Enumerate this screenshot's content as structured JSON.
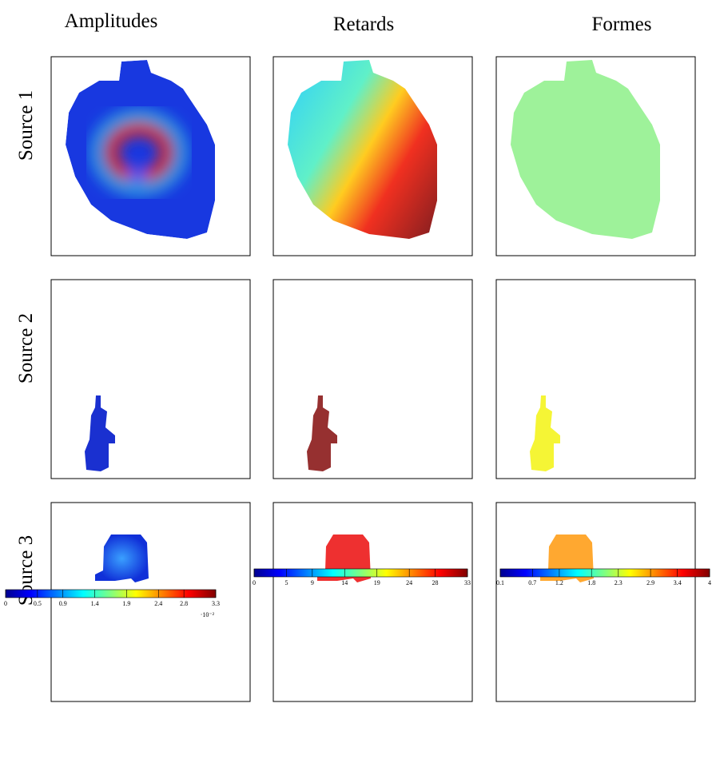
{
  "column_titles": [
    "Amplitudes",
    "Retards",
    "Formes"
  ],
  "row_labels": [
    "Source 1",
    "Source 2",
    "Source 3"
  ],
  "colorbars": [
    {
      "lim": [
        0,
        3.3
      ],
      "ticks": [
        0,
        0.5,
        0.9,
        1.4,
        1.9,
        2.4,
        2.8,
        3.3
      ],
      "multiplier": "·10⁻²"
    },
    {
      "lim": [
        0,
        33
      ],
      "ticks": [
        0,
        5,
        9,
        14,
        19,
        24,
        28,
        33
      ]
    },
    {
      "lim": [
        0.1,
        4
      ],
      "ticks": [
        0.1,
        0.7,
        1.2,
        1.8,
        2.3,
        2.9,
        3.4,
        4
      ]
    }
  ]
}
